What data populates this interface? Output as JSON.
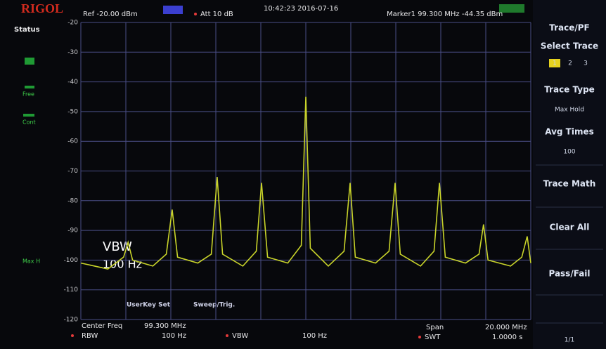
{
  "header": {
    "brand": "RIGOL",
    "datetime": "10:42:23 2016-07-16"
  },
  "status": {
    "label": "Status",
    "items": [
      "Free",
      "Cont",
      "Max H"
    ]
  },
  "plot": {
    "ref": "Ref -20.00 dBm",
    "att": "Att 10 dB",
    "marker": "Marker1 99.300 MHz -44.35 dBm",
    "overlay": [
      "VBW",
      "100 Hz",
      "UserKey Set",
      "Sweep/Trig."
    ],
    "ylim": [
      -120,
      -20
    ],
    "yticks": [
      -20,
      -30,
      -40,
      -50,
      -60,
      -70,
      -80,
      -90,
      -100,
      -110,
      -120
    ],
    "xlim": [
      89.3,
      109.3
    ],
    "trace": {
      "color": "#c9d42a",
      "x": [
        89.3,
        90.5,
        91.2,
        91.4,
        91.6,
        92.5,
        93.1,
        93.36,
        93.6,
        94.5,
        95.1,
        95.36,
        95.6,
        96.5,
        97.1,
        97.33,
        97.6,
        98.5,
        99.1,
        99.3,
        99.5,
        100.3,
        101.0,
        101.27,
        101.5,
        102.4,
        103.0,
        103.27,
        103.5,
        104.4,
        105.0,
        105.24,
        105.5,
        106.4,
        107.0,
        107.2,
        107.4,
        108.4,
        108.9,
        109.14,
        109.3
      ],
      "values": [
        -101,
        -103,
        -99,
        -94,
        -100,
        -102,
        -98,
        -83,
        -99,
        -101,
        -98,
        -72,
        -98,
        -102,
        -97,
        -74,
        -99,
        -101,
        -95,
        -45,
        -96,
        -102,
        -97,
        -74,
        -99,
        -101,
        -97,
        -74,
        -98,
        -102,
        -97,
        -74,
        -99,
        -101,
        -98,
        -88,
        -100,
        -102,
        -99,
        -92,
        -101
      ]
    }
  },
  "menu": {
    "title": "Trace/PF",
    "select_trace": "Select Trace",
    "traces": [
      "1",
      "2",
      "3"
    ],
    "trace_type": "Trace Type",
    "trace_type_value": "Max Hold",
    "avg_times": "Avg Times",
    "avg_value": "100",
    "trace_math": "Trace Math",
    "clear_all": "Clear All",
    "pass_fail": "Pass/Fail",
    "page": "1/1"
  },
  "footer": {
    "center_label": "Center Freq",
    "center_value": "99.300 MHz",
    "rbw_label": "RBW",
    "rbw_value": "100 Hz",
    "vbw_label": "VBW",
    "vbw_value": "100 Hz",
    "span_label": "Span",
    "span_value": "20.000 MHz",
    "swt_label": "SWT",
    "swt_value": "1.0000 s"
  }
}
